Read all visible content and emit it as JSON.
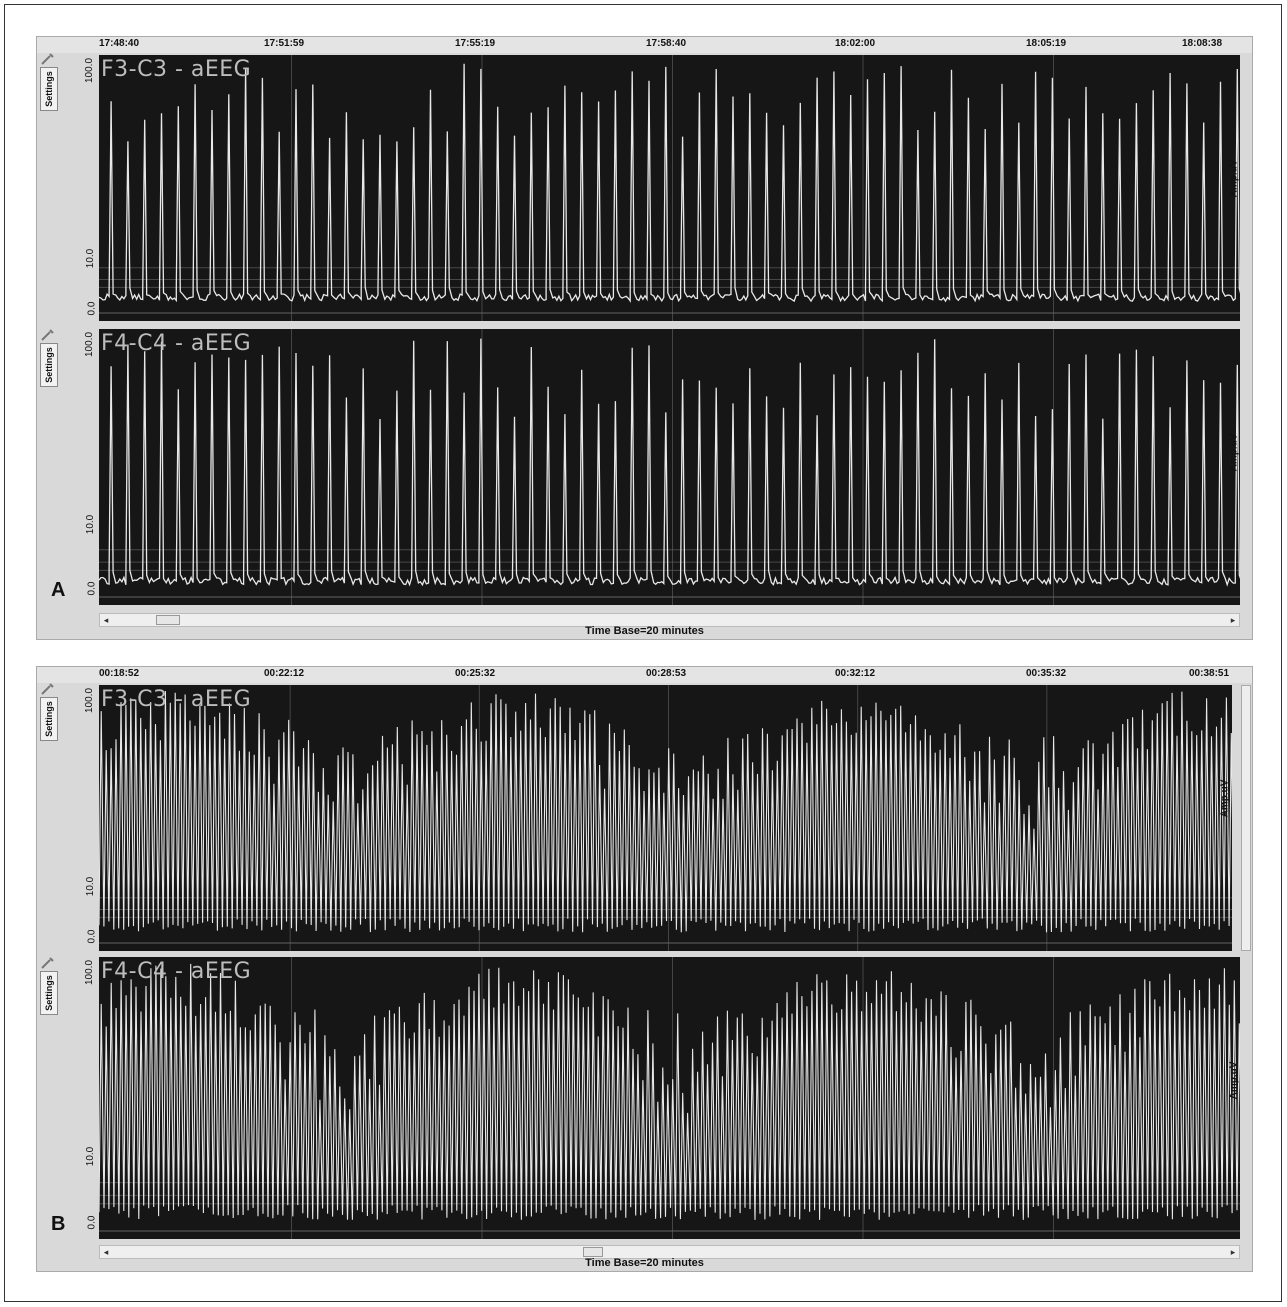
{
  "panels": [
    {
      "letter": "A",
      "times": [
        "17:48:40",
        "17:51:59",
        "17:55:19",
        "17:58:40",
        "18:02:00",
        "18:05:19",
        "18:08:38"
      ],
      "channels": [
        {
          "title": "F3-C3 - aEEG",
          "settings": "Settings",
          "y_top": "100.0",
          "y_mid": "10.0",
          "y_bot": "0.0",
          "amp_label": "Amp.uV"
        },
        {
          "title": "F4-C4 - aEEG",
          "settings": "Settings",
          "y_top": "100.0",
          "y_mid": "10.0",
          "y_bot": "0.0",
          "amp_label": "Amp.uV"
        }
      ],
      "timebase": "Time Base=20 minutes",
      "pattern": "periodic_spikes",
      "scroll_position": 0.04
    },
    {
      "letter": "B",
      "times": [
        "00:18:52",
        "00:22:12",
        "00:25:32",
        "00:28:53",
        "00:32:12",
        "00:35:32",
        "00:38:51"
      ],
      "channels": [
        {
          "title": "F3-C3 - aEEG",
          "settings": "Settings",
          "y_top": "100.0",
          "y_mid": "10.0",
          "y_bot": "0.0",
          "amp_label": "Amp.uV"
        },
        {
          "title": "F4-C4 - aEEG",
          "settings": "Settings",
          "y_top": "100.0",
          "y_mid": "10.0",
          "y_bot": "0.0",
          "amp_label": "Amp.uV"
        }
      ],
      "timebase": "Time Base=20 minutes",
      "pattern": "dense_spikes",
      "scroll_position": 0.43
    }
  ],
  "colors": {
    "plot_bg": "#161616",
    "trace": "#e8e8e8",
    "grid": "#6a6a6a",
    "chrome": "#d9d9d9"
  }
}
